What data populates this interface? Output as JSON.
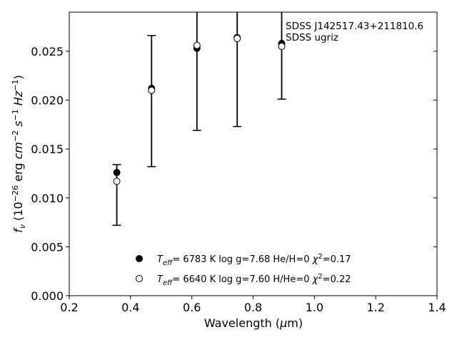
{
  "chart_data": {
    "type": "scatter",
    "title": "",
    "xlabel_parts": {
      "before": "Wavelength (",
      "unit_mu": "μ",
      "unit_rest": "m)"
    },
    "ylabel_parts": {
      "f": "f",
      "nu": "ν",
      "open": " (10",
      "exp26": "−26",
      "erg": " erg ",
      "cm": "cm",
      "exp_cm": "−2",
      "s": " s",
      "exp_s": "−1",
      "hz": " Hz",
      "exp_hz": "−1",
      "close": ")"
    },
    "xlim": [
      0.2,
      1.4
    ],
    "ylim": [
      0.0,
      0.029
    ],
    "x_ticks": [
      0.2,
      0.4,
      0.6,
      0.8,
      1.0,
      1.2,
      1.4
    ],
    "x_tick_labels": [
      "0.2",
      "0.4",
      "0.6",
      "0.8",
      "1.0",
      "1.2",
      "1.4"
    ],
    "y_ticks": [
      0.0,
      0.005,
      0.01,
      0.015,
      0.02,
      0.025
    ],
    "y_tick_labels": [
      "0.000",
      "0.005",
      "0.010",
      "0.015",
      "0.020",
      "0.025"
    ],
    "grid": false,
    "annotation_lines": [
      "SDSS J142517.43+211810.6",
      "SDSS ugriz"
    ],
    "observed": {
      "x": [
        0.3551,
        0.4686,
        0.6166,
        0.748,
        0.8932
      ],
      "y": [
        0.0103,
        0.0199,
        0.0265,
        0.0275,
        0.0268
      ],
      "yerr": [
        0.0031,
        0.0067,
        0.0096,
        0.0102,
        0.0067
      ]
    },
    "series": [
      {
        "name_parts": {
          "t": "T",
          "sub": "eff",
          "mid": "= 6783 K log g=7.68 He/H=0 ",
          "chi": "χ",
          "sup": "2",
          "end": "=0.17"
        },
        "marker": "filled",
        "x": [
          0.3551,
          0.4686,
          0.6166,
          0.748,
          0.8932
        ],
        "y": [
          0.0126,
          0.0212,
          0.0253,
          0.0264,
          0.0258
        ]
      },
      {
        "name_parts": {
          "t": "T",
          "sub": "eff",
          "mid": "= 6640 K log g=7.60 H/He=0 ",
          "chi": "χ",
          "sup": "2",
          "end": "=0.22"
        },
        "marker": "open",
        "x": [
          0.3551,
          0.4686,
          0.6166,
          0.748,
          0.8932
        ],
        "y": [
          0.0117,
          0.021,
          0.0256,
          0.0263,
          0.0255
        ]
      }
    ],
    "legend_position": "lower-center"
  }
}
